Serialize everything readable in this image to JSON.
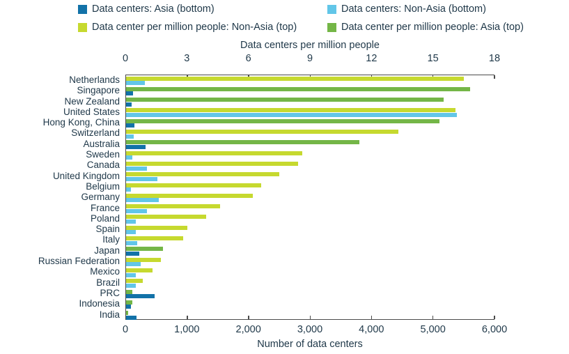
{
  "colors": {
    "asia_count": "#1272a8",
    "non_asia_count": "#62c6e8",
    "non_asia_per_million": "#c6d92f",
    "asia_per_million": "#74b647",
    "axis_line": "#4a4a4a",
    "text": "#1e3748"
  },
  "legend": [
    {
      "key": "asia_count",
      "label": "Data centers: Asia (bottom)"
    },
    {
      "key": "non_asia_count",
      "label": "Data centers: Non-Asia (bottom)"
    },
    {
      "key": "non_asia_per_million",
      "label": "Data center per million people: Non-Asia (top)"
    },
    {
      "key": "asia_per_million",
      "label": "Data center per million people: Asia (top)"
    }
  ],
  "chart_data": {
    "type": "bar",
    "orientation": "horizontal",
    "grid": false,
    "top_axis": {
      "title": "Data centers per million people",
      "min": 0,
      "max": 18,
      "tick_labels": [
        "0",
        "3",
        "6",
        "9",
        "12",
        "15",
        "18"
      ]
    },
    "bottom_axis": {
      "title": "Number of data centers",
      "min": 0,
      "max": 6000,
      "tick_labels": [
        "0",
        "1,000",
        "2,000",
        "3,000",
        "4,000",
        "5,000",
        "6,000"
      ]
    },
    "rows": [
      {
        "country": "Netherlands",
        "region": "non_asia",
        "per_million": 16.5,
        "centers": 305
      },
      {
        "country": "Singapore",
        "region": "asia",
        "per_million": 16.8,
        "centers": 110
      },
      {
        "country": "New Zealand",
        "region": "asia",
        "per_million": 15.5,
        "centers": 95
      },
      {
        "country": "United States",
        "region": "non_asia",
        "per_million": 16.1,
        "centers": 5390
      },
      {
        "country": "Hong Kong, China",
        "region": "asia",
        "per_million": 15.3,
        "centers": 140
      },
      {
        "country": "Switzerland",
        "region": "non_asia",
        "per_million": 13.3,
        "centers": 125
      },
      {
        "country": "Australia",
        "region": "asia",
        "per_million": 11.4,
        "centers": 315
      },
      {
        "country": "Sweden",
        "region": "non_asia",
        "per_million": 8.6,
        "centers": 100
      },
      {
        "country": "Canada",
        "region": "non_asia",
        "per_million": 8.4,
        "centers": 335
      },
      {
        "country": "United Kingdom",
        "region": "non_asia",
        "per_million": 7.5,
        "centers": 515
      },
      {
        "country": "Belgium",
        "region": "non_asia",
        "per_million": 6.6,
        "centers": 80
      },
      {
        "country": "Germany",
        "region": "non_asia",
        "per_million": 6.2,
        "centers": 530
      },
      {
        "country": "France",
        "region": "non_asia",
        "per_million": 4.6,
        "centers": 335
      },
      {
        "country": "Poland",
        "region": "non_asia",
        "per_million": 3.9,
        "centers": 160
      },
      {
        "country": "Spain",
        "region": "non_asia",
        "per_million": 3.0,
        "centers": 160
      },
      {
        "country": "Italy",
        "region": "non_asia",
        "per_million": 2.8,
        "centers": 185
      },
      {
        "country": "Japan",
        "region": "asia",
        "per_million": 1.8,
        "centers": 220
      },
      {
        "country": "Russian Federation",
        "region": "non_asia",
        "per_million": 1.7,
        "centers": 240
      },
      {
        "country": "Mexico",
        "region": "non_asia",
        "per_million": 1.3,
        "centers": 160
      },
      {
        "country": "Brazil",
        "region": "non_asia",
        "per_million": 0.8,
        "centers": 160
      },
      {
        "country": "PRC",
        "region": "asia",
        "per_million": 0.3,
        "centers": 460
      },
      {
        "country": "Indonesia",
        "region": "asia",
        "per_million": 0.3,
        "centers": 85
      },
      {
        "country": "India",
        "region": "asia",
        "per_million": 0.1,
        "centers": 170
      }
    ]
  }
}
